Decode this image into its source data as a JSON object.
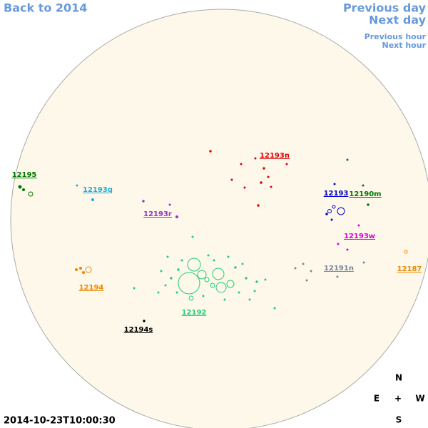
{
  "nav": {
    "back": "Back to 2014",
    "previous_day": "Previous day",
    "next_day": "Next day",
    "previous_hour": "Previous hour",
    "next_hour": "Next hour"
  },
  "regions": [
    {
      "label": "12195",
      "color": "#007700"
    },
    {
      "label": "12193q",
      "color": "#22aadd"
    },
    {
      "label": "12193r",
      "color": "#9933cc"
    },
    {
      "label": "12193n",
      "color": "#dd0000"
    },
    {
      "label": "12193",
      "color": "#0000cc"
    },
    {
      "label": "12190m",
      "color": "#007700"
    },
    {
      "label": "12193w",
      "color": "#dd00dd"
    },
    {
      "label": "12191n",
      "color": "#778899"
    },
    {
      "label": "12187",
      "color": "#ee8800"
    },
    {
      "label": "12194",
      "color": "#ee8800"
    },
    {
      "label": "12192",
      "color": "#22cc77"
    },
    {
      "label": "12194s",
      "color": "#000000"
    }
  ],
  "compass": {
    "north": "N",
    "east": "E",
    "center": "+",
    "west": "W",
    "south": "S"
  },
  "timestamp": "2014-10-23T10:00:30"
}
